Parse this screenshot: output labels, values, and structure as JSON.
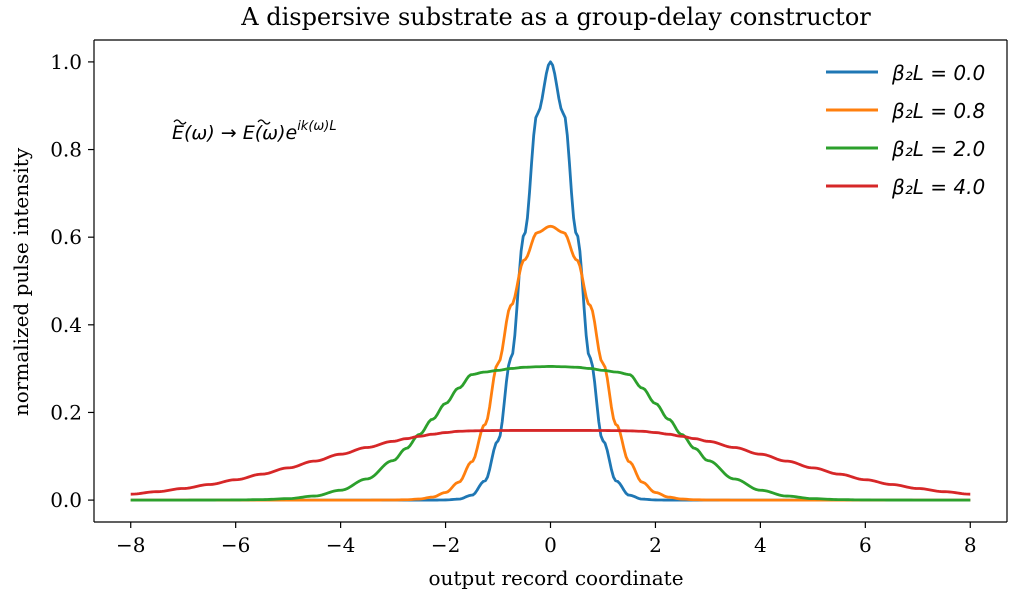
{
  "chart_data": {
    "type": "line",
    "title": "A dispersive substrate as a group-delay constructor",
    "xlabel": "output record coordinate",
    "ylabel": "normalized pulse intensity",
    "xlim": [
      -8.7,
      8.7
    ],
    "ylim": [
      -0.05,
      1.05
    ],
    "xticks": [
      -8,
      -6,
      -4,
      -2,
      0,
      2,
      4,
      6,
      8
    ],
    "yticks": [
      0.0,
      0.2,
      0.4,
      0.6,
      0.8,
      1.0
    ],
    "xtick_labels": [
      "−8",
      "−6",
      "−4",
      "−2",
      "0",
      "2",
      "4",
      "6",
      "8"
    ],
    "ytick_labels": [
      "0.0",
      "0.2",
      "0.4",
      "0.6",
      "0.8",
      "1.0"
    ],
    "grid": false,
    "legend_position": "top-right",
    "annotation": {
      "lhs": "E(ω)",
      "arrow": "→",
      "rhs_base": "E(ω)e",
      "rhs_exponent": "ik(ω)L"
    },
    "x": [
      -8,
      -7.5,
      -7,
      -6.5,
      -6,
      -5.5,
      -5,
      -4.5,
      -4,
      -3.5,
      -3,
      -2.75,
      -2.5,
      -2.25,
      -2,
      -1.75,
      -1.5,
      -1.25,
      -1,
      -0.75,
      -0.5,
      -0.25,
      0,
      0.25,
      0.5,
      0.75,
      1,
      1.25,
      1.5,
      1.75,
      2,
      2.25,
      2.5,
      2.75,
      3,
      3.5,
      4,
      4.5,
      5,
      5.5,
      6,
      6.5,
      7,
      7.5,
      8
    ],
    "series": [
      {
        "name": "β₂L = 0.0",
        "color": "#1f77b4",
        "values": [
          0,
          0,
          0,
          0,
          0,
          0,
          0,
          0,
          0,
          0,
          0,
          0,
          0,
          0,
          0.0003,
          0.0022,
          0.0111,
          0.0439,
          0.1353,
          0.3247,
          0.6065,
          0.8825,
          1.0,
          0.8825,
          0.6065,
          0.3247,
          0.1353,
          0.0439,
          0.0111,
          0.0022,
          0.0003,
          0,
          0,
          0,
          0,
          0,
          0,
          0,
          0,
          0,
          0,
          0,
          0,
          0,
          0
        ]
      },
      {
        "name": "β₂L = 0.8",
        "color": "#ff7f0e",
        "values": [
          0,
          0,
          0,
          0,
          0,
          0,
          0,
          0,
          0,
          0,
          0.0002,
          0.0008,
          0.0024,
          0.0068,
          0.0173,
          0.0406,
          0.0874,
          0.1725,
          0.3119,
          0.4445,
          0.5482,
          0.6107,
          0.625,
          0.6107,
          0.5482,
          0.4445,
          0.3119,
          0.1725,
          0.0874,
          0.0406,
          0.0173,
          0.0068,
          0.0024,
          0.0008,
          0.0002,
          0,
          0,
          0,
          0,
          0,
          0,
          0,
          0,
          0,
          0
        ]
      },
      {
        "name": "β₂L = 2.0",
        "color": "#2ca02c",
        "values": [
          0,
          0,
          0,
          0.0001,
          0.0003,
          0.0011,
          0.0033,
          0.0092,
          0.0225,
          0.0483,
          0.0901,
          0.1179,
          0.1497,
          0.1845,
          0.2205,
          0.2555,
          0.2866,
          0.2923,
          0.2961,
          0.3003,
          0.3031,
          0.3043,
          0.305,
          0.3043,
          0.3031,
          0.3003,
          0.2961,
          0.2923,
          0.2866,
          0.2555,
          0.2205,
          0.1845,
          0.1497,
          0.1179,
          0.0901,
          0.0483,
          0.0225,
          0.0092,
          0.0033,
          0.0011,
          0.0003,
          0.0001,
          0,
          0,
          0
        ]
      },
      {
        "name": "β₂L = 4.0",
        "color": "#d62728",
        "values": [
          0.0135,
          0.0192,
          0.0265,
          0.0356,
          0.0465,
          0.0592,
          0.0735,
          0.0889,
          0.1047,
          0.1201,
          0.1341,
          0.1402,
          0.1456,
          0.1503,
          0.1541,
          0.157,
          0.158,
          0.1585,
          0.1588,
          0.1589,
          0.159,
          0.159,
          0.159,
          0.159,
          0.159,
          0.1589,
          0.1588,
          0.1585,
          0.158,
          0.157,
          0.1541,
          0.1503,
          0.1456,
          0.1402,
          0.1341,
          0.1201,
          0.1047,
          0.0889,
          0.0735,
          0.0592,
          0.0465,
          0.0356,
          0.0265,
          0.0192,
          0.0135
        ]
      }
    ]
  }
}
